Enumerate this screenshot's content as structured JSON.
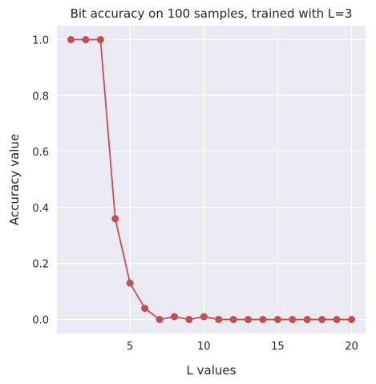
{
  "chart_data": {
    "type": "line",
    "title": "Bit accuracy on 100 samples, trained with L=3",
    "xlabel": "L values",
    "ylabel": "Accuracy value",
    "xlim": [
      0.05,
      20.95
    ],
    "ylim": [
      -0.05,
      1.05
    ],
    "xticks": [
      5,
      10,
      15,
      20
    ],
    "yticks": [
      0.0,
      0.2,
      0.4,
      0.6,
      0.8,
      1.0
    ],
    "ytick_labels": [
      "0.0",
      "0.2",
      "0.4",
      "0.6",
      "0.8",
      "1.0"
    ],
    "grid": true,
    "series": [
      {
        "color": "#c44e52",
        "marker": "circle",
        "x": [
          1,
          2,
          3,
          4,
          5,
          6,
          7,
          8,
          9,
          10,
          11,
          12,
          13,
          14,
          15,
          16,
          17,
          18,
          19,
          20
        ],
        "y": [
          1.0,
          1.0,
          1.0,
          0.36,
          0.13,
          0.04,
          0.0,
          0.01,
          0.0,
          0.01,
          0.0,
          0.0,
          0.0,
          0.0,
          0.0,
          0.0,
          0.0,
          0.0,
          0.0,
          0.0
        ]
      }
    ],
    "plot_background": "#eaeaf2",
    "grid_color": "#ffffff"
  }
}
